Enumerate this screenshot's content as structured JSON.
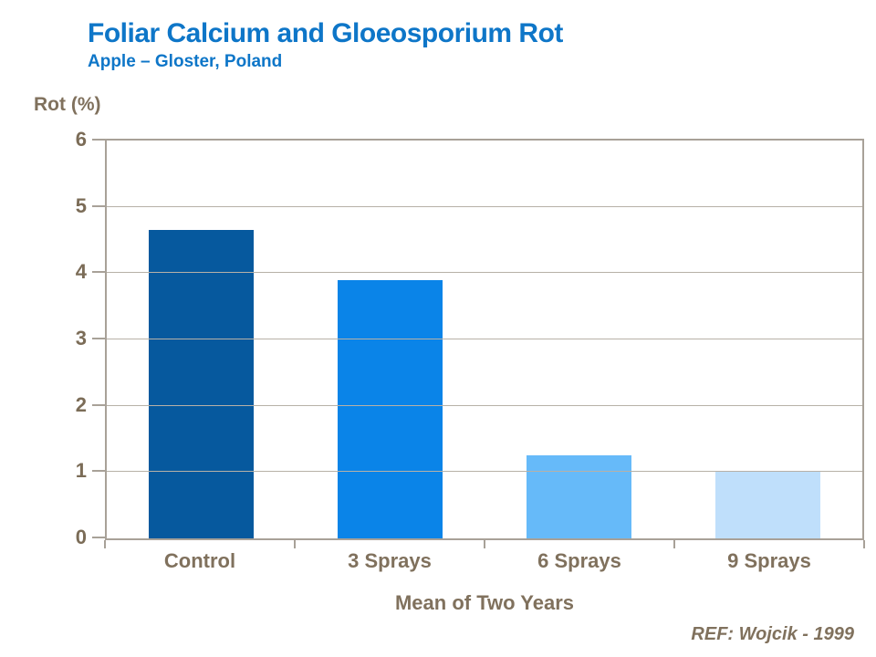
{
  "header": {
    "title": "Foliar Calcium and Gloeosporium Rot",
    "subtitle": "Apple – Gloster, Poland"
  },
  "footer": {
    "reference": "REF: Wojcik - 1999"
  },
  "colors": {
    "title_blue": "#0e76c8",
    "text_brown": "#80715d",
    "tick_brown": "#7b6c57",
    "axis_frame": "#a8a198",
    "gridline": "#b7b1a7",
    "bar_colors": [
      "#06599e",
      "#0a84e8",
      "#66baf9",
      "#bfdffb"
    ]
  },
  "chart_data": {
    "type": "bar",
    "title": "Foliar Calcium and Gloeosporium Rot",
    "subtitle": "Apple – Gloster, Poland",
    "categories": [
      "Control",
      "3 Sprays",
      "6 Sprays",
      "9 Sprays"
    ],
    "values": [
      4.65,
      3.9,
      1.25,
      1.0
    ],
    "xlabel": "Mean of Two Years",
    "ylabel": "Rot (%)",
    "ylim": [
      0,
      6
    ],
    "yticks": [
      0,
      1,
      2,
      3,
      4,
      5,
      6
    ],
    "grid": "horizontal-only",
    "legend": "none",
    "bar_colors": [
      "#06599e",
      "#0a84e8",
      "#66baf9",
      "#bfdffb"
    ],
    "annotation": "REF: Wojcik - 1999"
  }
}
